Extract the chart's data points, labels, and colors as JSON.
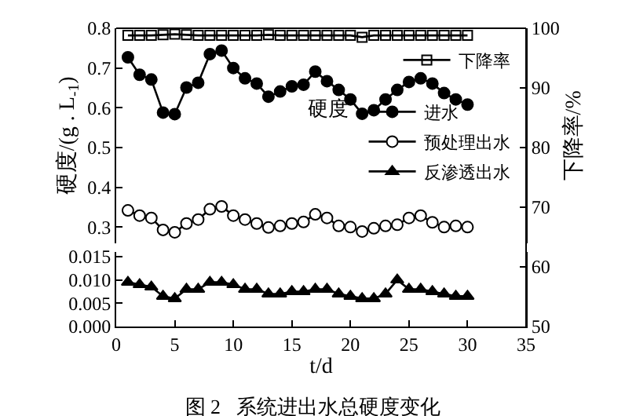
{
  "chart_data": [
    {
      "type": "line",
      "ylabel": "硬度/(g . L$_{-1}$)",
      "y2label": "下降率/%",
      "legend_title": "硬度",
      "tick_labels": "y",
      "x": [
        1,
        2,
        3,
        4,
        5,
        6,
        7,
        8,
        9,
        10,
        11,
        12,
        13,
        14,
        15,
        16,
        17,
        18,
        19,
        20,
        21,
        22,
        23,
        24,
        25,
        26,
        27,
        28,
        29,
        30
      ],
      "xlim": [
        0,
        35
      ],
      "ylim": [
        0.26,
        0.8
      ],
      "yticks": [
        0.3,
        0.4,
        0.5,
        0.6,
        0.7,
        0.8
      ],
      "y2lim": [
        64,
        100
      ],
      "y2ticks": [
        70,
        80,
        90,
        100
      ],
      "legend": "right",
      "line_style": "solid",
      "series": [
        {
          "name": "下降率",
          "color": "#000000",
          "axis": "y2",
          "marker": "square",
          "values": [
            98.8,
            98.8,
            98.8,
            98.9,
            99.0,
            98.9,
            98.8,
            98.8,
            98.8,
            98.8,
            98.8,
            98.8,
            98.9,
            98.8,
            98.8,
            98.8,
            98.8,
            98.8,
            98.8,
            98.8,
            98.5,
            98.8,
            98.8,
            98.8,
            98.8,
            98.8,
            98.8,
            98.8,
            98.8,
            98.8
          ]
        },
        {
          "name": "进水",
          "color": "#000000",
          "axis": "y",
          "marker": "circle",
          "values": [
            0.727,
            0.683,
            0.671,
            0.588,
            0.584,
            0.651,
            0.663,
            0.735,
            0.744,
            0.7,
            0.674,
            0.661,
            0.628,
            0.641,
            0.654,
            0.658,
            0.691,
            0.667,
            0.645,
            0.621,
            0.585,
            0.594,
            0.621,
            0.645,
            0.665,
            0.674,
            0.661,
            0.637,
            0.621,
            0.608
          ]
        },
        {
          "name": "预处理出水",
          "color": "#000000",
          "axis": "y",
          "marker": "circle",
          "colors": [
            "#ffffff",
            "#ffffff",
            "#ffffff",
            "#ffffff",
            "#ffffff",
            "#ffffff",
            "#ffffff",
            "#ffffff",
            "#ffffff",
            "#ffffff",
            "#ffffff",
            "#ffffff",
            "#ffffff",
            "#ffffff",
            "#ffffff",
            "#ffffff",
            "#ffffff",
            "#ffffff",
            "#ffffff",
            "#ffffff",
            "#ffffff",
            "#ffffff",
            "#ffffff",
            "#ffffff",
            "#ffffff",
            "#ffffff",
            "#ffffff",
            "#ffffff",
            "#ffffff",
            "#ffffff"
          ],
          "values": [
            0.342,
            0.329,
            0.323,
            0.293,
            0.287,
            0.309,
            0.319,
            0.345,
            0.352,
            0.329,
            0.319,
            0.309,
            0.299,
            0.303,
            0.309,
            0.313,
            0.332,
            0.323,
            0.303,
            0.3,
            0.289,
            0.297,
            0.303,
            0.306,
            0.323,
            0.329,
            0.312,
            0.3,
            0.303,
            0.3
          ]
        }
      ]
    },
    {
      "type": "line",
      "title": "图 2   系统进出水总硬度变化",
      "xlabel": "t/d",
      "x": [
        1,
        2,
        3,
        4,
        5,
        6,
        7,
        8,
        9,
        10,
        11,
        12,
        13,
        14,
        15,
        16,
        17,
        18,
        19,
        20,
        21,
        22,
        23,
        24,
        25,
        26,
        27,
        28,
        29,
        30
      ],
      "xlim": [
        0,
        35
      ],
      "xticks": [
        0,
        5,
        10,
        15,
        20,
        25,
        30,
        35
      ],
      "ylim": [
        0,
        0.016
      ],
      "yticks": [
        {
          "value": 0,
          "label": "0.000"
        },
        {
          "value": 0.005,
          "label": "0.005"
        },
        {
          "value": 0.01,
          "label": "0.010"
        },
        {
          "value": 0.015,
          "label": "0.015"
        }
      ],
      "y2lim": [
        50,
        62.5
      ],
      "y2ticks": [
        50,
        60
      ],
      "legend": "right",
      "line_style": "solid",
      "series": [
        {
          "name": "反渗透出水",
          "color": "#000000",
          "axis": "y",
          "marker": "triangle",
          "values": [
            0.0095,
            0.009,
            0.0085,
            0.0065,
            0.006,
            0.008,
            0.008,
            0.0095,
            0.0095,
            0.009,
            0.008,
            0.008,
            0.007,
            0.007,
            0.0075,
            0.0075,
            0.008,
            0.008,
            0.007,
            0.0065,
            0.006,
            0.006,
            0.007,
            0.01,
            0.008,
            0.008,
            0.0075,
            0.007,
            0.0065,
            0.0065
          ]
        }
      ]
    }
  ]
}
